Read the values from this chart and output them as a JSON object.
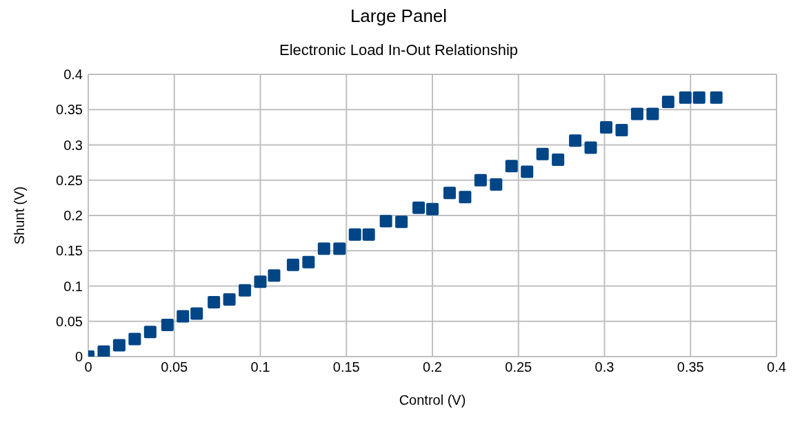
{
  "chart_data": {
    "type": "scatter",
    "title": "Large Panel",
    "subtitle": "Electronic Load In-Out Relationship",
    "xlabel": "Control (V)",
    "ylabel": "Shunt (V)",
    "x": [
      0,
      0.009,
      0.018,
      0.027,
      0.036,
      0.046,
      0.055,
      0.063,
      0.073,
      0.082,
      0.091,
      0.1,
      0.108,
      0.119,
      0.128,
      0.137,
      0.146,
      0.155,
      0.163,
      0.173,
      0.182,
      0.192,
      0.2,
      0.21,
      0.219,
      0.228,
      0.237,
      0.246,
      0.255,
      0.264,
      0.273,
      0.283,
      0.292,
      0.301,
      0.31,
      0.319,
      0.328,
      0.337,
      0.347,
      0.355,
      0.365
    ],
    "series": [
      {
        "color": "#004586",
        "values": [
          0,
          0.007,
          0.016,
          0.025,
          0.035,
          0.045,
          0.057,
          0.061,
          0.077,
          0.081,
          0.094,
          0.106,
          0.115,
          0.13,
          0.134,
          0.153,
          0.153,
          0.173,
          0.173,
          0.192,
          0.191,
          0.211,
          0.209,
          0.232,
          0.226,
          0.25,
          0.244,
          0.27,
          0.262,
          0.287,
          0.279,
          0.306,
          0.296,
          0.325,
          0.321,
          0.344,
          0.344,
          0.361,
          0.367,
          0.367,
          0.367
        ]
      }
    ],
    "xlim": [
      0,
      0.4
    ],
    "xticks": [
      0,
      0.05,
      0.1,
      0.15,
      0.2,
      0.25,
      0.3,
      0.35,
      0.4
    ],
    "ylim": [
      0,
      0.4
    ],
    "yticks": [
      0,
      0.05,
      0.1,
      0.15,
      0.2,
      0.25,
      0.3,
      0.35,
      0.4
    ],
    "grid": true,
    "marker": "square",
    "legend": false
  }
}
